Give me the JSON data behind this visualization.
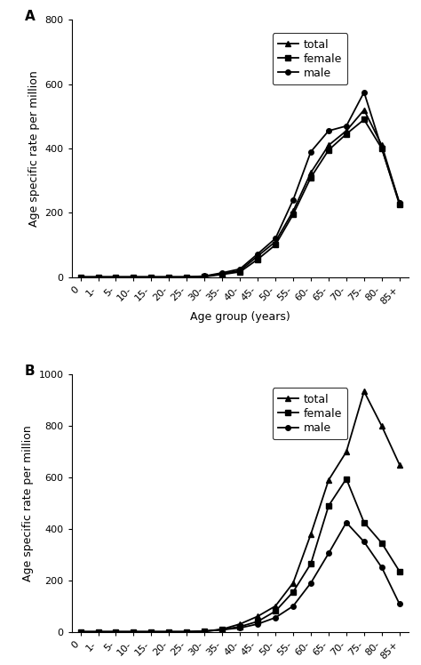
{
  "age_labels": [
    "0",
    "1-",
    "5-",
    "10-",
    "15-",
    "20-",
    "25-",
    "30-",
    "35-",
    "40-",
    "45-",
    "50-",
    "55-",
    "60-",
    "65-",
    "70-",
    "75-",
    "80-",
    "85+"
  ],
  "chart_A": {
    "title": "A",
    "ylabel": "Age specific rate per million",
    "xlabel": "Age group (years)",
    "ylim": [
      0,
      800
    ],
    "yticks": [
      0,
      200,
      400,
      600,
      800
    ],
    "total": [
      0,
      0,
      0,
      0,
      0,
      0,
      0,
      2,
      10,
      20,
      65,
      110,
      205,
      325,
      410,
      455,
      520,
      410,
      230
    ],
    "female": [
      0,
      0,
      0,
      0,
      0,
      0,
      0,
      1,
      8,
      16,
      55,
      100,
      195,
      310,
      395,
      445,
      490,
      400,
      225
    ],
    "male": [
      0,
      0,
      0,
      0,
      0,
      0,
      0,
      3,
      13,
      25,
      72,
      120,
      240,
      390,
      455,
      470,
      575,
      400,
      230
    ]
  },
  "chart_B": {
    "title": "B",
    "ylabel": "Age specific rate per million",
    "xlabel": "Age group (years)",
    "ylim": [
      0,
      1000
    ],
    "yticks": [
      0,
      200,
      400,
      600,
      800,
      1000
    ],
    "total": [
      0,
      0,
      0,
      0,
      0,
      0,
      0,
      2,
      10,
      30,
      60,
      100,
      190,
      380,
      590,
      700,
      935,
      800,
      650
    ],
    "female": [
      0,
      0,
      0,
      0,
      0,
      0,
      0,
      2,
      8,
      20,
      40,
      80,
      155,
      265,
      490,
      595,
      425,
      345,
      235
    ],
    "male": [
      0,
      0,
      0,
      0,
      0,
      0,
      0,
      2,
      8,
      15,
      30,
      55,
      100,
      190,
      305,
      425,
      350,
      250,
      108
    ]
  },
  "line_color": "#000000",
  "marker_total": "^",
  "marker_female": "s",
  "marker_male": "o",
  "markersize": 4,
  "linewidth": 1.3,
  "font_size_label": 9,
  "font_size_tick": 8,
  "font_size_title": 11,
  "font_size_legend": 9,
  "background_color": "#ffffff"
}
